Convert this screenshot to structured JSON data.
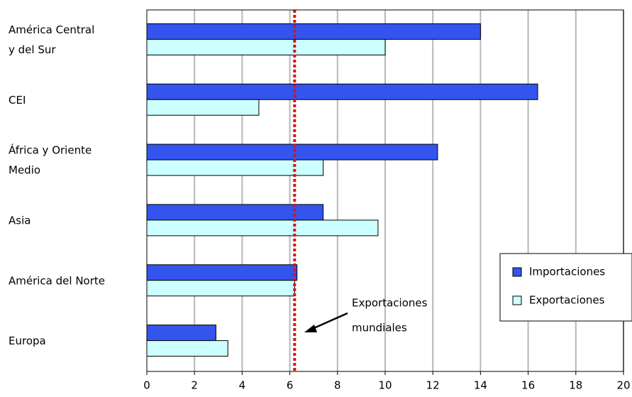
{
  "chart_data": {
    "type": "bar",
    "orientation": "horizontal",
    "categories": [
      [
        "América Central",
        "y del Sur"
      ],
      [
        "CEI"
      ],
      [
        "África y Oriente",
        "Medio"
      ],
      [
        "Asia"
      ],
      [
        "América del Norte"
      ],
      [
        "Europa"
      ]
    ],
    "series": [
      {
        "name": "Importaciones",
        "color": "#3355ee",
        "values": [
          14.0,
          16.4,
          12.2,
          7.4,
          6.3,
          2.9
        ]
      },
      {
        "name": "Exportaciones",
        "color": "#ccffff",
        "values": [
          10.0,
          4.7,
          7.4,
          9.7,
          6.2,
          3.4
        ]
      }
    ],
    "reference_line": {
      "value": 6.2,
      "color": "#dd1111",
      "label": [
        "Exportaciones",
        "mundiales"
      ]
    },
    "xlim": [
      0,
      20
    ],
    "xticks": [
      0,
      2,
      4,
      6,
      8,
      10,
      12,
      14,
      16,
      18,
      20
    ],
    "grid": "vertical",
    "legend_position": "right"
  }
}
